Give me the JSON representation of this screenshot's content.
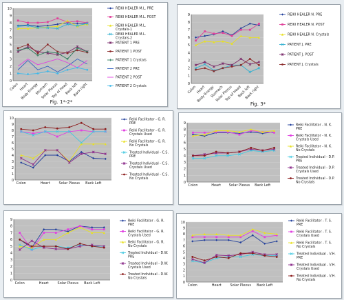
{
  "colors": {
    "page_bg": "#e9eef2",
    "plot_bg": "#c0c0c0"
  },
  "figure_captions": [
    "Fig. 1*-2*",
    "Fig. 3*"
  ],
  "chart_data": [
    {
      "type": "line",
      "categories": [
        "Colon",
        "Heart",
        "Body Energy",
        "Stomach",
        "Solar Plexus",
        "Top of Head",
        "Back left",
        "Back right"
      ],
      "ylim": [
        0,
        10
      ],
      "yticks": [
        0,
        1,
        2,
        3,
        4,
        5,
        6,
        7,
        8,
        9,
        10
      ],
      "grid": true,
      "legend": "right",
      "series": [
        {
          "name": "REIKI HEALER M.L. PRE",
          "color": "#1f3d9a",
          "marker": "diamond",
          "values": [
            7.6,
            7.7,
            7.5,
            7.6,
            7.8,
            8.0,
            7.9,
            7.9
          ]
        },
        {
          "name": "REIKI HEALER M.L. POST",
          "color": "#e0409a",
          "marker": "square",
          "values": [
            8.3,
            8.0,
            8.0,
            8.1,
            8.6,
            8.1,
            8.2,
            8.0
          ]
        },
        {
          "name": "REIKI HEALER M.L. Crystals-1",
          "color": "#e8e020",
          "marker": "triangle",
          "values": [
            7.2,
            7.2,
            7.3,
            7.4,
            7.5,
            8.3,
            7.5,
            7.8
          ]
        },
        {
          "name": "REIKI HEALER M.L. Crystals-2",
          "color": "#30b0d0",
          "marker": "x",
          "values": [
            7.5,
            7.6,
            7.3,
            7.3,
            7.2,
            7.8,
            7.6,
            7.9
          ]
        },
        {
          "name": "PATIENT 1 PRE",
          "color": "#7a2a6a",
          "marker": "star",
          "values": [
            4.0,
            4.7,
            4.0,
            3.8,
            3.6,
            3.9,
            4.7,
            4.0
          ]
        },
        {
          "name": "PATIENT 1 POST",
          "color": "#8b2a2a",
          "marker": "circle",
          "values": [
            4.5,
            5.0,
            3.8,
            5.0,
            4.0,
            3.8,
            4.2,
            3.9
          ]
        },
        {
          "name": "PATIENT 1 Crystals",
          "color": "#2a7a5a",
          "marker": "plus",
          "values": [
            4.2,
            4.5,
            3.5,
            4.0,
            3.8,
            3.0,
            4.5,
            4.0
          ]
        },
        {
          "name": "PATIENT 2 PRE",
          "color": "#3060c0",
          "marker": "none",
          "values": [
            1.5,
            2.8,
            1.5,
            2.0,
            1.2,
            2.0,
            3.0,
            2.3
          ]
        },
        {
          "name": "PATIENT 2 POST",
          "color": "#e040e0",
          "marker": "none",
          "values": [
            2.0,
            3.0,
            2.2,
            2.6,
            3.0,
            2.5,
            1.8,
            2.8
          ]
        },
        {
          "name": "PATIENT 2 Crystals",
          "color": "#40b8e8",
          "marker": "circle",
          "values": [
            1.0,
            0.9,
            1.0,
            1.3,
            1.0,
            1.5,
            1.8,
            1.5
          ]
        }
      ]
    },
    {
      "type": "line",
      "categories": [
        "Colon",
        "Heart",
        "Body Energy",
        "Stomach",
        "Solar Plexus",
        "Top of Head",
        "Back left",
        "Back right"
      ],
      "ylim": [
        0,
        9
      ],
      "yticks": [
        0,
        1,
        2,
        3,
        4,
        5,
        6,
        7,
        8,
        9
      ],
      "grid": true,
      "legend": "right",
      "series": [
        {
          "name": "REIKI HEALER N. PRE",
          "color": "#1f3d9a",
          "marker": "diamond",
          "values": [
            6.0,
            6.2,
            6.4,
            6.8,
            6.3,
            7.2,
            7.8,
            7.6
          ]
        },
        {
          "name": "REIKI HEALER N. POST",
          "color": "#e0409a",
          "marker": "square",
          "values": [
            5.6,
            6.8,
            6.5,
            6.6,
            6.2,
            7.0,
            7.0,
            7.8
          ]
        },
        {
          "name": "REIKI HEALER N. Crystals",
          "color": "#e8e020",
          "marker": "triangle",
          "values": [
            5.0,
            5.5,
            5.4,
            5.5,
            5.2,
            6.2,
            6.0,
            6.0
          ]
        },
        {
          "name": "PATIENT J. PRE",
          "color": "#30b0d0",
          "marker": "x",
          "values": [
            2.0,
            2.5,
            1.7,
            2.0,
            2.4,
            2.4,
            1.5,
            2.0
          ]
        },
        {
          "name": "PATIENT J. POST",
          "color": "#7a2a6a",
          "marker": "star",
          "values": [
            2.4,
            2.8,
            2.2,
            2.6,
            2.4,
            3.2,
            2.5,
            2.8
          ]
        },
        {
          "name": "PATIENT J. Crystals",
          "color": "#8b2a2a",
          "marker": "circle",
          "values": [
            1.8,
            2.0,
            1.6,
            2.0,
            2.2,
            2.4,
            3.2,
            2.4
          ]
        }
      ]
    },
    {
      "type": "line",
      "categories": [
        "Colon",
        "",
        "Heart",
        "",
        "Solar Plexus",
        "",
        "Back Left",
        ""
      ],
      "ylim": [
        0,
        10
      ],
      "yticks": [
        0,
        1,
        2,
        3,
        4,
        5,
        6,
        7,
        8,
        9,
        10
      ],
      "grid": true,
      "legend": "right",
      "series": [
        {
          "name": "Reiki Facilitator - G. R. PRE",
          "color": "#1f3d9a",
          "marker": "diamond",
          "values": [
            2.8,
            2.0,
            4.0,
            4.0,
            3.0,
            4.5,
            3.5,
            3.4
          ]
        },
        {
          "name": "Reiki Facilitator - G. R. Crystals Used",
          "color": "#e040e0",
          "marker": "square",
          "values": [
            7.8,
            7.5,
            7.8,
            7.0,
            7.8,
            8.0,
            7.8,
            7.8
          ]
        },
        {
          "name": "Reiki Facilitator - G. R. No Crystals",
          "color": "#e8e020",
          "marker": "triangle",
          "values": [
            4.0,
            3.5,
            4.8,
            4.8,
            3.0,
            5.8,
            5.8,
            5.8
          ]
        },
        {
          "name": "Treated Individual - C.S. PRE",
          "color": "#40c8e0",
          "marker": "x",
          "values": [
            7.8,
            7.2,
            7.8,
            7.8,
            7.8,
            6.0,
            7.8,
            7.8
          ]
        },
        {
          "name": "Treated Individual - C.S. Crystals Used",
          "color": "#8a2a8a",
          "marker": "star",
          "values": [
            3.5,
            2.5,
            4.8,
            4.8,
            2.8,
            4.2,
            4.5,
            4.2
          ]
        },
        {
          "name": "Treated Individual - C.S. No Crystals",
          "color": "#8b1a1a",
          "marker": "circle",
          "values": [
            8.2,
            8.0,
            8.5,
            8.3,
            8.5,
            9.2,
            8.2,
            8.2
          ]
        }
      ]
    },
    {
      "type": "line",
      "categories": [
        "Colon",
        "",
        "Heart",
        "",
        "Solar Plexus",
        "",
        "Back Left",
        ""
      ],
      "ylim": [
        0,
        9
      ],
      "yticks": [
        0,
        1,
        2,
        3,
        4,
        5,
        6,
        7,
        8,
        9
      ],
      "grid": true,
      "legend": "right",
      "series": [
        {
          "name": "Reiki Facilitator - N. K. PRE",
          "color": "#1f3d9a",
          "marker": "diamond",
          "values": [
            7.2,
            7.0,
            7.5,
            7.5,
            7.4,
            7.6,
            7.4,
            7.6
          ]
        },
        {
          "name": "Reiki Facilitator - N. K. Crystals Used",
          "color": "#e040e0",
          "marker": "square",
          "values": [
            7.5,
            7.5,
            7.6,
            7.6,
            7.2,
            7.8,
            7.6,
            7.5
          ]
        },
        {
          "name": "Reiki Facilitator - N. K. No Crystals",
          "color": "#e8e020",
          "marker": "triangle",
          "values": [
            7.0,
            7.2,
            7.8,
            7.8,
            7.6,
            8.0,
            7.6,
            7.8
          ]
        },
        {
          "name": "Treated Individual - D.P. PRE",
          "color": "#40c8e0",
          "marker": "x",
          "values": [
            3.6,
            3.6,
            4.0,
            4.0,
            4.2,
            4.8,
            4.6,
            4.8
          ]
        },
        {
          "name": "Treated Individual - D.P. Crystals Used",
          "color": "#8a2a8a",
          "marker": "star",
          "values": [
            4.0,
            4.2,
            4.4,
            4.4,
            4.6,
            5.0,
            4.8,
            5.0
          ]
        },
        {
          "name": "Treated Individual - D.P. No Crystals",
          "color": "#8b1a1a",
          "marker": "circle",
          "values": [
            4.0,
            4.0,
            4.6,
            4.4,
            4.6,
            5.2,
            4.8,
            5.2
          ]
        }
      ]
    },
    {
      "type": "line",
      "categories": [
        "Colon",
        "",
        "Heart",
        "",
        "Solar Plexus",
        "",
        "Back Left",
        ""
      ],
      "ylim": [
        0,
        9
      ],
      "yticks": [
        0,
        1,
        2,
        3,
        4,
        5,
        6,
        7,
        8,
        9
      ],
      "grid": true,
      "legend": "right",
      "series": [
        {
          "name": "Reiki Facilitator - G. R. PRE",
          "color": "#1f3d9a",
          "marker": "diamond",
          "values": [
            6.0,
            4.8,
            7.5,
            7.5,
            7.2,
            8.0,
            7.8,
            7.8
          ]
        },
        {
          "name": "Reiki Facilitator - G. R. Crystals Used",
          "color": "#e040e0",
          "marker": "square",
          "values": [
            7.0,
            4.5,
            7.0,
            7.0,
            7.5,
            8.0,
            7.5,
            7.5
          ]
        },
        {
          "name": "Reiki Facilitator - G. R. No Crystals",
          "color": "#e8e020",
          "marker": "triangle",
          "values": [
            5.0,
            4.8,
            6.0,
            6.0,
            7.0,
            7.8,
            7.0,
            7.0
          ]
        },
        {
          "name": "Treated Individual - D.W. PRE",
          "color": "#40c8e0",
          "marker": "x",
          "values": [
            5.2,
            4.5,
            5.0,
            5.0,
            4.8,
            5.2,
            5.0,
            5.0
          ]
        },
        {
          "name": "Treated Individual - D.W. Crystals Used",
          "color": "#8a2a8a",
          "marker": "star",
          "values": [
            4.5,
            5.8,
            4.8,
            4.6,
            4.6,
            5.0,
            5.2,
            5.0
          ]
        },
        {
          "name": "Treated Individual - D.W. No Crystals",
          "color": "#8b1a1a",
          "marker": "circle",
          "values": [
            6.0,
            5.0,
            5.0,
            5.0,
            4.6,
            5.4,
            5.0,
            4.8
          ]
        }
      ]
    },
    {
      "type": "line",
      "categories": [
        "Colon",
        "",
        "Heart",
        "",
        "Solar Plexus",
        "",
        "Back Left",
        ""
      ],
      "ylim": [
        0,
        10
      ],
      "yticks": [
        0,
        1,
        2,
        3,
        4,
        5,
        6,
        7,
        8,
        9,
        10
      ],
      "grid": true,
      "legend": "right",
      "series": [
        {
          "name": "Reiki Facilitator - T. S. PRE",
          "color": "#1f3d9a",
          "marker": "diamond",
          "values": [
            6.8,
            7.0,
            7.0,
            7.0,
            6.6,
            7.8,
            6.4,
            6.8
          ]
        },
        {
          "name": "Reiki Facilitator - T. S. Crystals Used",
          "color": "#e040e0",
          "marker": "square",
          "values": [
            7.5,
            7.5,
            7.5,
            7.5,
            7.5,
            8.5,
            7.5,
            7.8
          ]
        },
        {
          "name": "Reiki Facilitator - T. S. No Crystals",
          "color": "#e8e020",
          "marker": "triangle",
          "values": [
            7.8,
            8.0,
            8.0,
            7.8,
            7.8,
            8.8,
            8.2,
            8.0
          ]
        },
        {
          "name": "Treated Individual - V.H. PRE",
          "color": "#40c8e0",
          "marker": "x",
          "values": [
            3.5,
            3.2,
            4.0,
            4.2,
            4.2,
            4.6,
            4.4,
            4.4
          ]
        },
        {
          "name": "Treated Individual - V.H. Crystals Used",
          "color": "#8a2a8a",
          "marker": "star",
          "values": [
            3.8,
            3.2,
            4.5,
            4.4,
            4.6,
            5.0,
            4.6,
            4.6
          ]
        },
        {
          "name": "Treated Individual - V.H. No Crystals",
          "color": "#8b1a1a",
          "marker": "circle",
          "values": [
            4.2,
            3.6,
            4.2,
            4.0,
            4.8,
            4.8,
            4.4,
            4.2
          ]
        }
      ]
    }
  ]
}
